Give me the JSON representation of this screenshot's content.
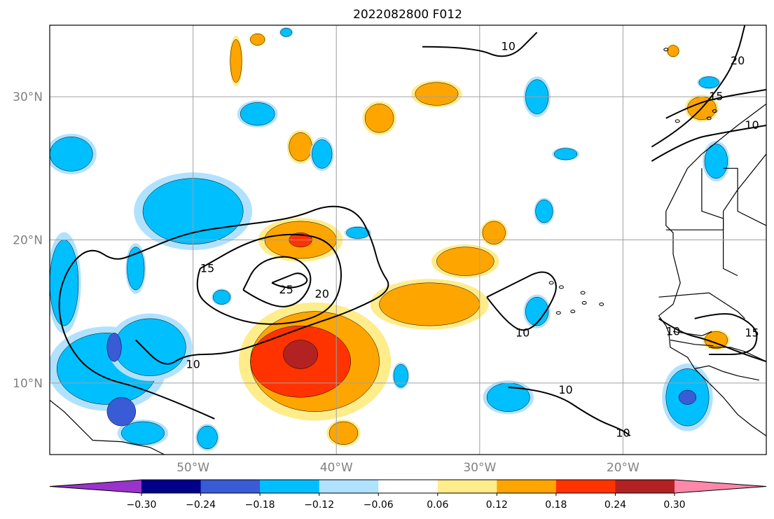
{
  "chart_data": {
    "type": "heatmap",
    "title": "2022082800 F012",
    "map_extent": {
      "lon": [
        -60,
        -10
      ],
      "lat": [
        5,
        35
      ]
    },
    "x_ticks": [
      {
        "value": -50,
        "label": "50°W"
      },
      {
        "value": -40,
        "label": "40°W"
      },
      {
        "value": -30,
        "label": "30°W"
      },
      {
        "value": -20,
        "label": "20°W"
      }
    ],
    "y_ticks": [
      {
        "value": 10,
        "label": "10°N"
      },
      {
        "value": 20,
        "label": "20°N"
      },
      {
        "value": 30,
        "label": "30°N"
      }
    ],
    "grid": true,
    "colorbar": {
      "orientation": "horizontal",
      "extend": "both",
      "boundaries": [
        -0.3,
        -0.24,
        -0.18,
        -0.12,
        -0.06,
        0.06,
        0.12,
        0.18,
        0.24,
        0.3
      ],
      "tick_labels": [
        "−0.30",
        "−0.24",
        "−0.18",
        "−0.12",
        "−0.06",
        "0.06",
        "0.12",
        "0.18",
        "0.24",
        "0.30"
      ],
      "colors": [
        "#9933cc",
        "#00008b",
        "#3a5bd6",
        "#00bfff",
        "#b0e2ff",
        "#ffffff",
        "#ffec8b",
        "#ffa500",
        "#ff3300",
        "#b22222",
        "#ff88aa"
      ]
    },
    "shaded_regions": [
      {
        "level": 0.24,
        "center": [
          -42.5,
          12.0
        ],
        "radius": [
          1.2,
          1.0
        ]
      },
      {
        "level": 0.18,
        "center": [
          -42.5,
          11.5
        ],
        "radius": [
          3.5,
          2.5
        ]
      },
      {
        "level": 0.12,
        "center": [
          -41.5,
          11.5
        ],
        "radius": [
          4.5,
          3.5
        ]
      },
      {
        "level": 0.12,
        "center": [
          -33.5,
          15.5
        ],
        "radius": [
          3.5,
          1.5
        ]
      },
      {
        "level": 0.12,
        "center": [
          -31.0,
          18.5
        ],
        "radius": [
          2.0,
          1.0
        ]
      },
      {
        "level": 0.12,
        "center": [
          -42.5,
          20.0
        ],
        "radius": [
          2.5,
          1.3
        ]
      },
      {
        "level": 0.18,
        "center": [
          -42.5,
          20.0
        ],
        "radius": [
          0.8,
          0.5
        ]
      },
      {
        "level": 0.12,
        "center": [
          -37.0,
          28.5
        ],
        "radius": [
          1.0,
          1.0
        ]
      },
      {
        "level": 0.12,
        "center": [
          -33.0,
          30.2
        ],
        "radius": [
          1.5,
          0.8
        ]
      },
      {
        "level": 0.12,
        "center": [
          -42.5,
          26.5
        ],
        "radius": [
          0.8,
          1.0
        ]
      },
      {
        "level": 0.12,
        "center": [
          -47.0,
          32.5
        ],
        "radius": [
          0.4,
          1.5
        ]
      },
      {
        "level": 0.12,
        "center": [
          -39.5,
          6.5
        ],
        "radius": [
          1.0,
          0.8
        ]
      },
      {
        "level": 0.12,
        "center": [
          -29.0,
          20.5
        ],
        "radius": [
          0.8,
          0.8
        ]
      },
      {
        "level": 0.12,
        "center": [
          -14.5,
          29.2
        ],
        "radius": [
          1.0,
          0.8
        ]
      },
      {
        "level": 0.12,
        "center": [
          -13.5,
          13.0
        ],
        "radius": [
          0.8,
          0.6
        ]
      },
      {
        "level": 0.12,
        "center": [
          -45.5,
          34.0
        ],
        "radius": [
          0.5,
          0.4
        ]
      },
      {
        "level": 0.12,
        "center": [
          -16.5,
          33.2
        ],
        "radius": [
          0.4,
          0.4
        ]
      },
      {
        "level": -0.12,
        "center": [
          -50.0,
          22.0
        ],
        "radius": [
          3.5,
          2.3
        ]
      },
      {
        "level": -0.12,
        "center": [
          -56.0,
          11.0
        ],
        "radius": [
          3.5,
          2.5
        ]
      },
      {
        "level": -0.12,
        "center": [
          -53.0,
          12.5
        ],
        "radius": [
          2.5,
          2.0
        ]
      },
      {
        "level": -0.18,
        "center": [
          -55.0,
          8.0
        ],
        "radius": [
          1.0,
          1.0
        ]
      },
      {
        "level": -0.18,
        "center": [
          -55.5,
          12.5
        ],
        "radius": [
          0.5,
          1.0
        ]
      },
      {
        "level": -0.12,
        "center": [
          -58.5,
          26.0
        ],
        "radius": [
          1.5,
          1.2
        ]
      },
      {
        "level": -0.12,
        "center": [
          -59.0,
          17.0
        ],
        "radius": [
          1.0,
          3.0
        ]
      },
      {
        "level": -0.12,
        "center": [
          -54.0,
          18.0
        ],
        "radius": [
          0.6,
          1.5
        ]
      },
      {
        "level": -0.12,
        "center": [
          -45.5,
          28.8
        ],
        "radius": [
          1.2,
          0.8
        ]
      },
      {
        "level": -0.12,
        "center": [
          -53.5,
          6.5
        ],
        "radius": [
          1.5,
          0.8
        ]
      },
      {
        "level": -0.12,
        "center": [
          -49.0,
          6.2
        ],
        "radius": [
          0.7,
          0.8
        ]
      },
      {
        "level": -0.12,
        "center": [
          -28.0,
          9.0
        ],
        "radius": [
          1.5,
          1.0
        ]
      },
      {
        "level": -0.12,
        "center": [
          -15.5,
          9.0
        ],
        "radius": [
          1.5,
          2.0
        ]
      },
      {
        "level": -0.18,
        "center": [
          -15.5,
          9.0
        ],
        "radius": [
          0.6,
          0.5
        ]
      },
      {
        "level": -0.12,
        "center": [
          -26.0,
          30.0
        ],
        "radius": [
          0.8,
          1.2
        ]
      },
      {
        "level": -0.12,
        "center": [
          -26.0,
          15.0
        ],
        "radius": [
          0.8,
          1.0
        ]
      },
      {
        "level": -0.12,
        "center": [
          -13.5,
          25.5
        ],
        "radius": [
          0.8,
          1.2
        ]
      },
      {
        "level": -0.12,
        "center": [
          -14.0,
          31.0
        ],
        "radius": [
          0.7,
          0.4
        ]
      },
      {
        "level": -0.12,
        "center": [
          -25.5,
          22.0
        ],
        "radius": [
          0.6,
          0.8
        ]
      },
      {
        "level": -0.12,
        "center": [
          -24.0,
          26.0
        ],
        "radius": [
          0.8,
          0.4
        ]
      },
      {
        "level": -0.12,
        "center": [
          -35.5,
          10.5
        ],
        "radius": [
          0.5,
          0.8
        ]
      },
      {
        "level": -0.12,
        "center": [
          -38.5,
          20.5
        ],
        "radius": [
          0.8,
          0.4
        ]
      },
      {
        "level": -0.12,
        "center": [
          -41.0,
          26.0
        ],
        "radius": [
          0.7,
          1.0
        ]
      },
      {
        "level": -0.12,
        "center": [
          -43.5,
          34.5
        ],
        "radius": [
          0.4,
          0.3
        ]
      },
      {
        "level": -0.12,
        "center": [
          -48.0,
          16.0
        ],
        "radius": [
          0.6,
          0.5
        ]
      }
    ],
    "contours": [
      {
        "level": 10,
        "label": "10",
        "points": [
          [
            -48.5,
            7.5
          ],
          [
            -53,
            9.5
          ],
          [
            -57,
            10.5
          ],
          [
            -59,
            13
          ],
          [
            -59.5,
            16
          ],
          [
            -58.5,
            18.5
          ],
          [
            -57,
            19.5
          ],
          [
            -55.5,
            18.5
          ],
          [
            -54,
            19
          ],
          [
            -50.5,
            20.5
          ],
          [
            -47,
            21
          ],
          [
            -43,
            21.5
          ],
          [
            -40.5,
            22.5
          ],
          [
            -38.5,
            22
          ],
          [
            -37.5,
            20
          ],
          [
            -37,
            18
          ],
          [
            -36,
            16.5
          ],
          [
            -39,
            15
          ],
          [
            -42,
            14
          ],
          [
            -46,
            12.5
          ],
          [
            -48,
            12
          ],
          [
            -50.5,
            12
          ],
          [
            -52,
            11
          ],
          [
            -54,
            13
          ]
        ]
      },
      {
        "level": 15,
        "label": "15",
        "points": [
          [
            -49.5,
            18
          ],
          [
            -50,
            16.5
          ],
          [
            -48.5,
            15
          ],
          [
            -45.5,
            14
          ],
          [
            -42,
            14.3
          ],
          [
            -40,
            15.5
          ],
          [
            -39.5,
            18
          ],
          [
            -40.5,
            20
          ],
          [
            -43,
            20.5
          ],
          [
            -46,
            20
          ],
          [
            -49.5,
            18
          ]
        ]
      },
      {
        "level": 20,
        "label": "20",
        "points": [
          [
            -46.5,
            16.5
          ],
          [
            -44.5,
            15.2
          ],
          [
            -42.5,
            15.5
          ],
          [
            -41.5,
            17.5
          ],
          [
            -43,
            19
          ],
          [
            -45.5,
            18.5
          ],
          [
            -46.5,
            16.5
          ]
        ]
      },
      {
        "level": 25,
        "label": "25",
        "points": [
          [
            -44.5,
            17
          ],
          [
            -43.5,
            16.5
          ],
          [
            -41.8,
            17
          ],
          [
            -42.5,
            17.8
          ],
          [
            -43.5,
            17.4
          ],
          [
            -44.5,
            17
          ]
        ]
      },
      {
        "level": 10,
        "label": "10",
        "points": [
          [
            -29.5,
            16
          ],
          [
            -28,
            14
          ],
          [
            -26.5,
            13.5
          ],
          [
            -25,
            15.5
          ],
          [
            -24.5,
            17
          ],
          [
            -25.5,
            18
          ],
          [
            -27.5,
            17
          ],
          [
            -29.5,
            16
          ]
        ]
      },
      {
        "level": 10,
        "label": "10",
        "points": [
          [
            -28,
            9.7
          ],
          [
            -25,
            9.5
          ],
          [
            -22,
            7.5
          ],
          [
            -20,
            6.7
          ],
          [
            -19.5,
            6.3
          ]
        ]
      },
      {
        "level": 10,
        "label": "10",
        "points": [
          [
            -34,
            33.5
          ],
          [
            -30.5,
            33.5
          ],
          [
            -28,
            32.5
          ],
          [
            -26,
            34.5
          ]
        ]
      },
      {
        "level": 20,
        "label": "20",
        "points": [
          [
            -18,
            26.5
          ],
          [
            -15.5,
            28
          ],
          [
            -13,
            31
          ],
          [
            -12,
            33
          ],
          [
            -11.5,
            35
          ]
        ]
      },
      {
        "level": 15,
        "label": "15",
        "points": [
          [
            -17,
            28.5
          ],
          [
            -15,
            29.5
          ],
          [
            -13,
            30
          ],
          [
            -10,
            30.5
          ]
        ]
      },
      {
        "level": 10,
        "label": "10",
        "points": [
          [
            -18,
            25.5
          ],
          [
            -15.5,
            27
          ],
          [
            -13,
            27.5
          ],
          [
            -10,
            28
          ]
        ]
      },
      {
        "level": 15,
        "label": "15",
        "points": [
          [
            -15,
            14.5
          ],
          [
            -13,
            15
          ],
          [
            -11.5,
            14.5
          ],
          [
            -10.5,
            13.5
          ],
          [
            -11,
            12
          ],
          [
            -14,
            12
          ]
        ]
      },
      {
        "level": 10,
        "label": "10",
        "points": [
          [
            -17.5,
            14.5
          ],
          [
            -16,
            13.5
          ],
          [
            -14,
            13
          ],
          [
            -11.5,
            12
          ],
          [
            -10,
            11.5
          ]
        ]
      }
    ],
    "contour_labels": [
      {
        "text": "10",
        "lon": -50.0,
        "lat": 11.3
      },
      {
        "text": "15",
        "lon": -49.0,
        "lat": 18.0
      },
      {
        "text": "20",
        "lon": -41.0,
        "lat": 16.2
      },
      {
        "text": "25",
        "lon": -43.5,
        "lat": 16.5
      },
      {
        "text": "10",
        "lon": -27.0,
        "lat": 13.5
      },
      {
        "text": "10",
        "lon": -24.0,
        "lat": 9.5
      },
      {
        "text": "10",
        "lon": -20.0,
        "lat": 6.5
      },
      {
        "text": "10",
        "lon": -28.0,
        "lat": 33.5
      },
      {
        "text": "20",
        "lon": -12.0,
        "lat": 32.5
      },
      {
        "text": "15",
        "lon": -13.5,
        "lat": 30.0
      },
      {
        "text": "10",
        "lon": -11.0,
        "lat": 28.0
      },
      {
        "text": "15",
        "lon": -11.0,
        "lat": 13.5
      },
      {
        "text": "10",
        "lon": -16.5,
        "lat": 13.6
      }
    ],
    "coastlines": [
      [
        [
          -10,
          29.5
        ],
        [
          -12,
          28
        ],
        [
          -13,
          27.2
        ],
        [
          -14.5,
          26
        ],
        [
          -15.5,
          25
        ],
        [
          -16,
          24
        ],
        [
          -17,
          22
        ],
        [
          -17,
          21
        ],
        [
          -16.5,
          20.5
        ],
        [
          -16.5,
          19
        ],
        [
          -16,
          17
        ],
        [
          -16.5,
          15.5
        ],
        [
          -17.5,
          14.7
        ],
        [
          -17,
          14
        ],
        [
          -16.8,
          13.5
        ],
        [
          -16.7,
          12.5
        ],
        [
          -15.5,
          11.8
        ],
        [
          -15,
          11
        ],
        [
          -14.5,
          10.5
        ],
        [
          -13.5,
          9.5
        ],
        [
          -13,
          9
        ],
        [
          -12,
          7.8
        ],
        [
          -11,
          7
        ],
        [
          -10,
          6.3
        ]
      ],
      [
        [
          -60,
          8.8
        ],
        [
          -59,
          8
        ],
        [
          -58,
          7
        ],
        [
          -57,
          6
        ],
        [
          -55,
          5.9
        ],
        [
          -53,
          5.5
        ],
        [
          -52,
          5
        ]
      ],
      [
        [
          -14.5,
          25
        ],
        [
          -14.5,
          22
        ],
        [
          -13,
          21.5
        ],
        [
          -13,
          18
        ],
        [
          -12,
          17.5
        ]
      ],
      [
        [
          -17,
          20.7
        ],
        [
          -13,
          20.7
        ],
        [
          -13,
          22
        ],
        [
          -12,
          23.5
        ],
        [
          -10,
          26
        ]
      ],
      [
        [
          -13,
          25
        ],
        [
          -12,
          25
        ],
        [
          -12,
          22
        ],
        [
          -10,
          21
        ]
      ],
      [
        [
          -14,
          12.5
        ],
        [
          -12.5,
          12.5
        ],
        [
          -11.5,
          12.2
        ],
        [
          -10,
          11.5
        ]
      ],
      [
        [
          -16.5,
          13.6
        ],
        [
          -14.5,
          13.3
        ],
        [
          -13.8,
          13.6
        ]
      ],
      [
        [
          -16.7,
          13.0
        ],
        [
          -15,
          12.7
        ],
        [
          -13.7,
          12.6
        ]
      ],
      [
        [
          -15,
          11
        ],
        [
          -14,
          11.2
        ],
        [
          -13,
          10.8
        ],
        [
          -12,
          10.5
        ],
        [
          -10.5,
          10.2
        ]
      ],
      [
        [
          -17.5,
          16
        ],
        [
          -14,
          16.3
        ],
        [
          -12,
          15
        ],
        [
          -11.5,
          14.5
        ]
      ]
    ],
    "islands": [
      [
        -22.8,
        16.3
      ],
      [
        -24.3,
        16.7
      ],
      [
        -25,
        17
      ],
      [
        -23.5,
        15
      ],
      [
        -24.5,
        14.9
      ],
      [
        -22.7,
        15.6
      ],
      [
        -21.5,
        15.5
      ],
      [
        -17,
        33.3
      ],
      [
        -16.2,
        28.3
      ],
      [
        -14,
        28.5
      ],
      [
        -13.6,
        29
      ]
    ]
  }
}
